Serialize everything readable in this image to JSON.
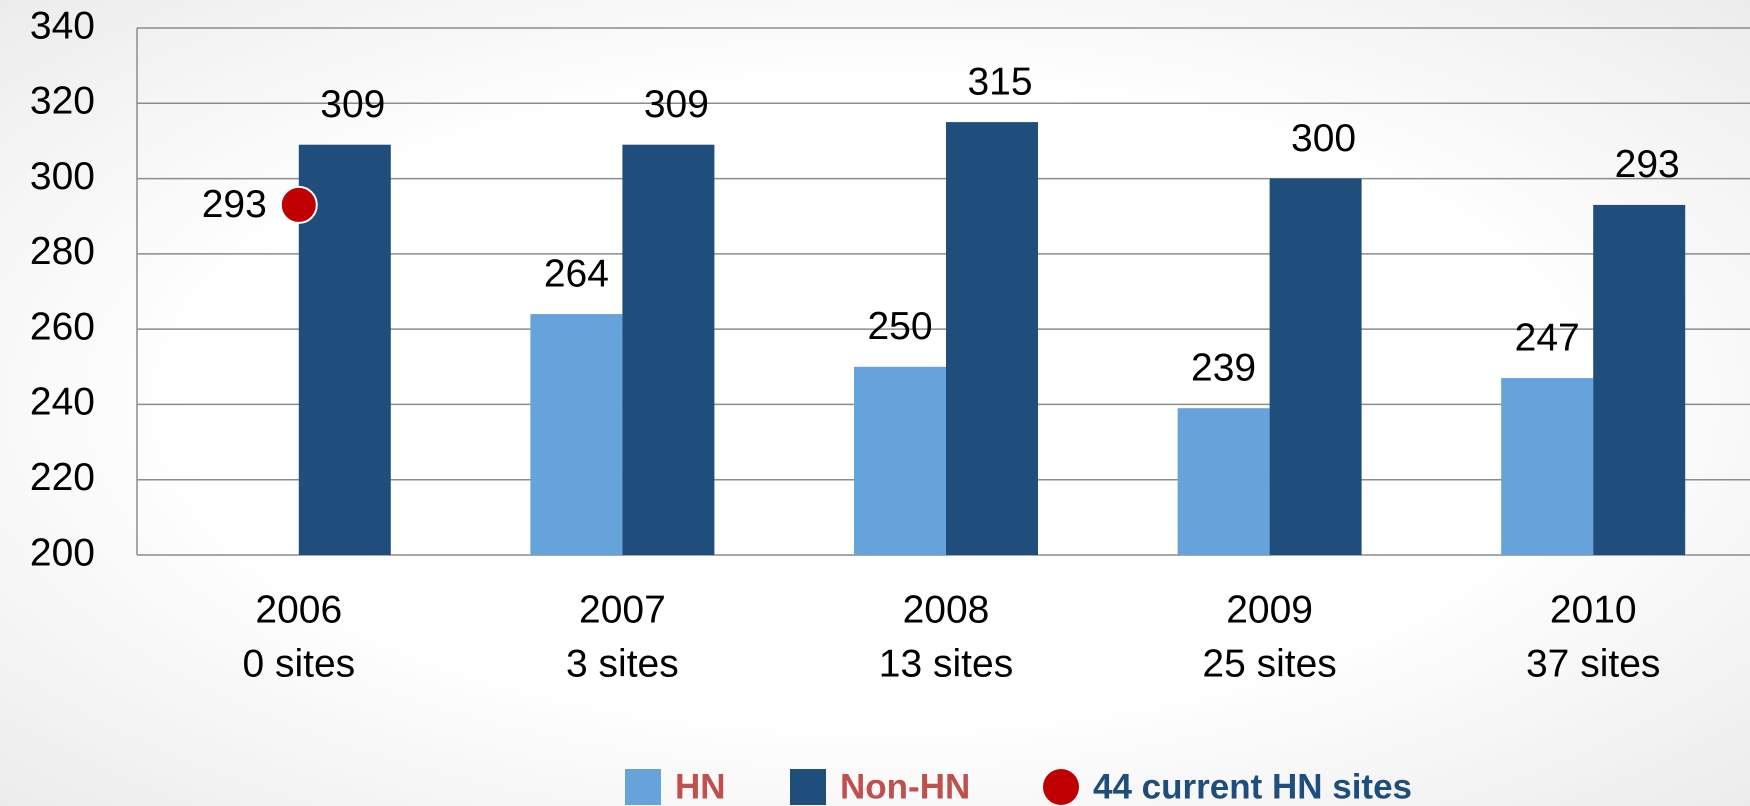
{
  "chart_data": {
    "type": "bar",
    "categories": [
      [
        "2006",
        "0 sites"
      ],
      [
        "2007",
        "3 sites"
      ],
      [
        "2008",
        "13 sites"
      ],
      [
        "2009",
        "25 sites"
      ],
      [
        "2010",
        "37 sites"
      ]
    ],
    "series": [
      {
        "name": "HN",
        "color": "#65a3da",
        "values": [
          null,
          264,
          250,
          239,
          247
        ]
      },
      {
        "name": "Non-HN",
        "color": "#1f4e7d",
        "values": [
          309,
          309,
          315,
          300,
          293
        ]
      },
      {
        "name": "44 current HN sites",
        "type": "point",
        "color": "#c00000",
        "values": [
          293,
          null,
          null,
          null,
          null
        ]
      }
    ],
    "ylim": [
      200,
      340
    ],
    "yticks": [
      200,
      220,
      240,
      260,
      280,
      300,
      320,
      340
    ],
    "grid": true
  }
}
